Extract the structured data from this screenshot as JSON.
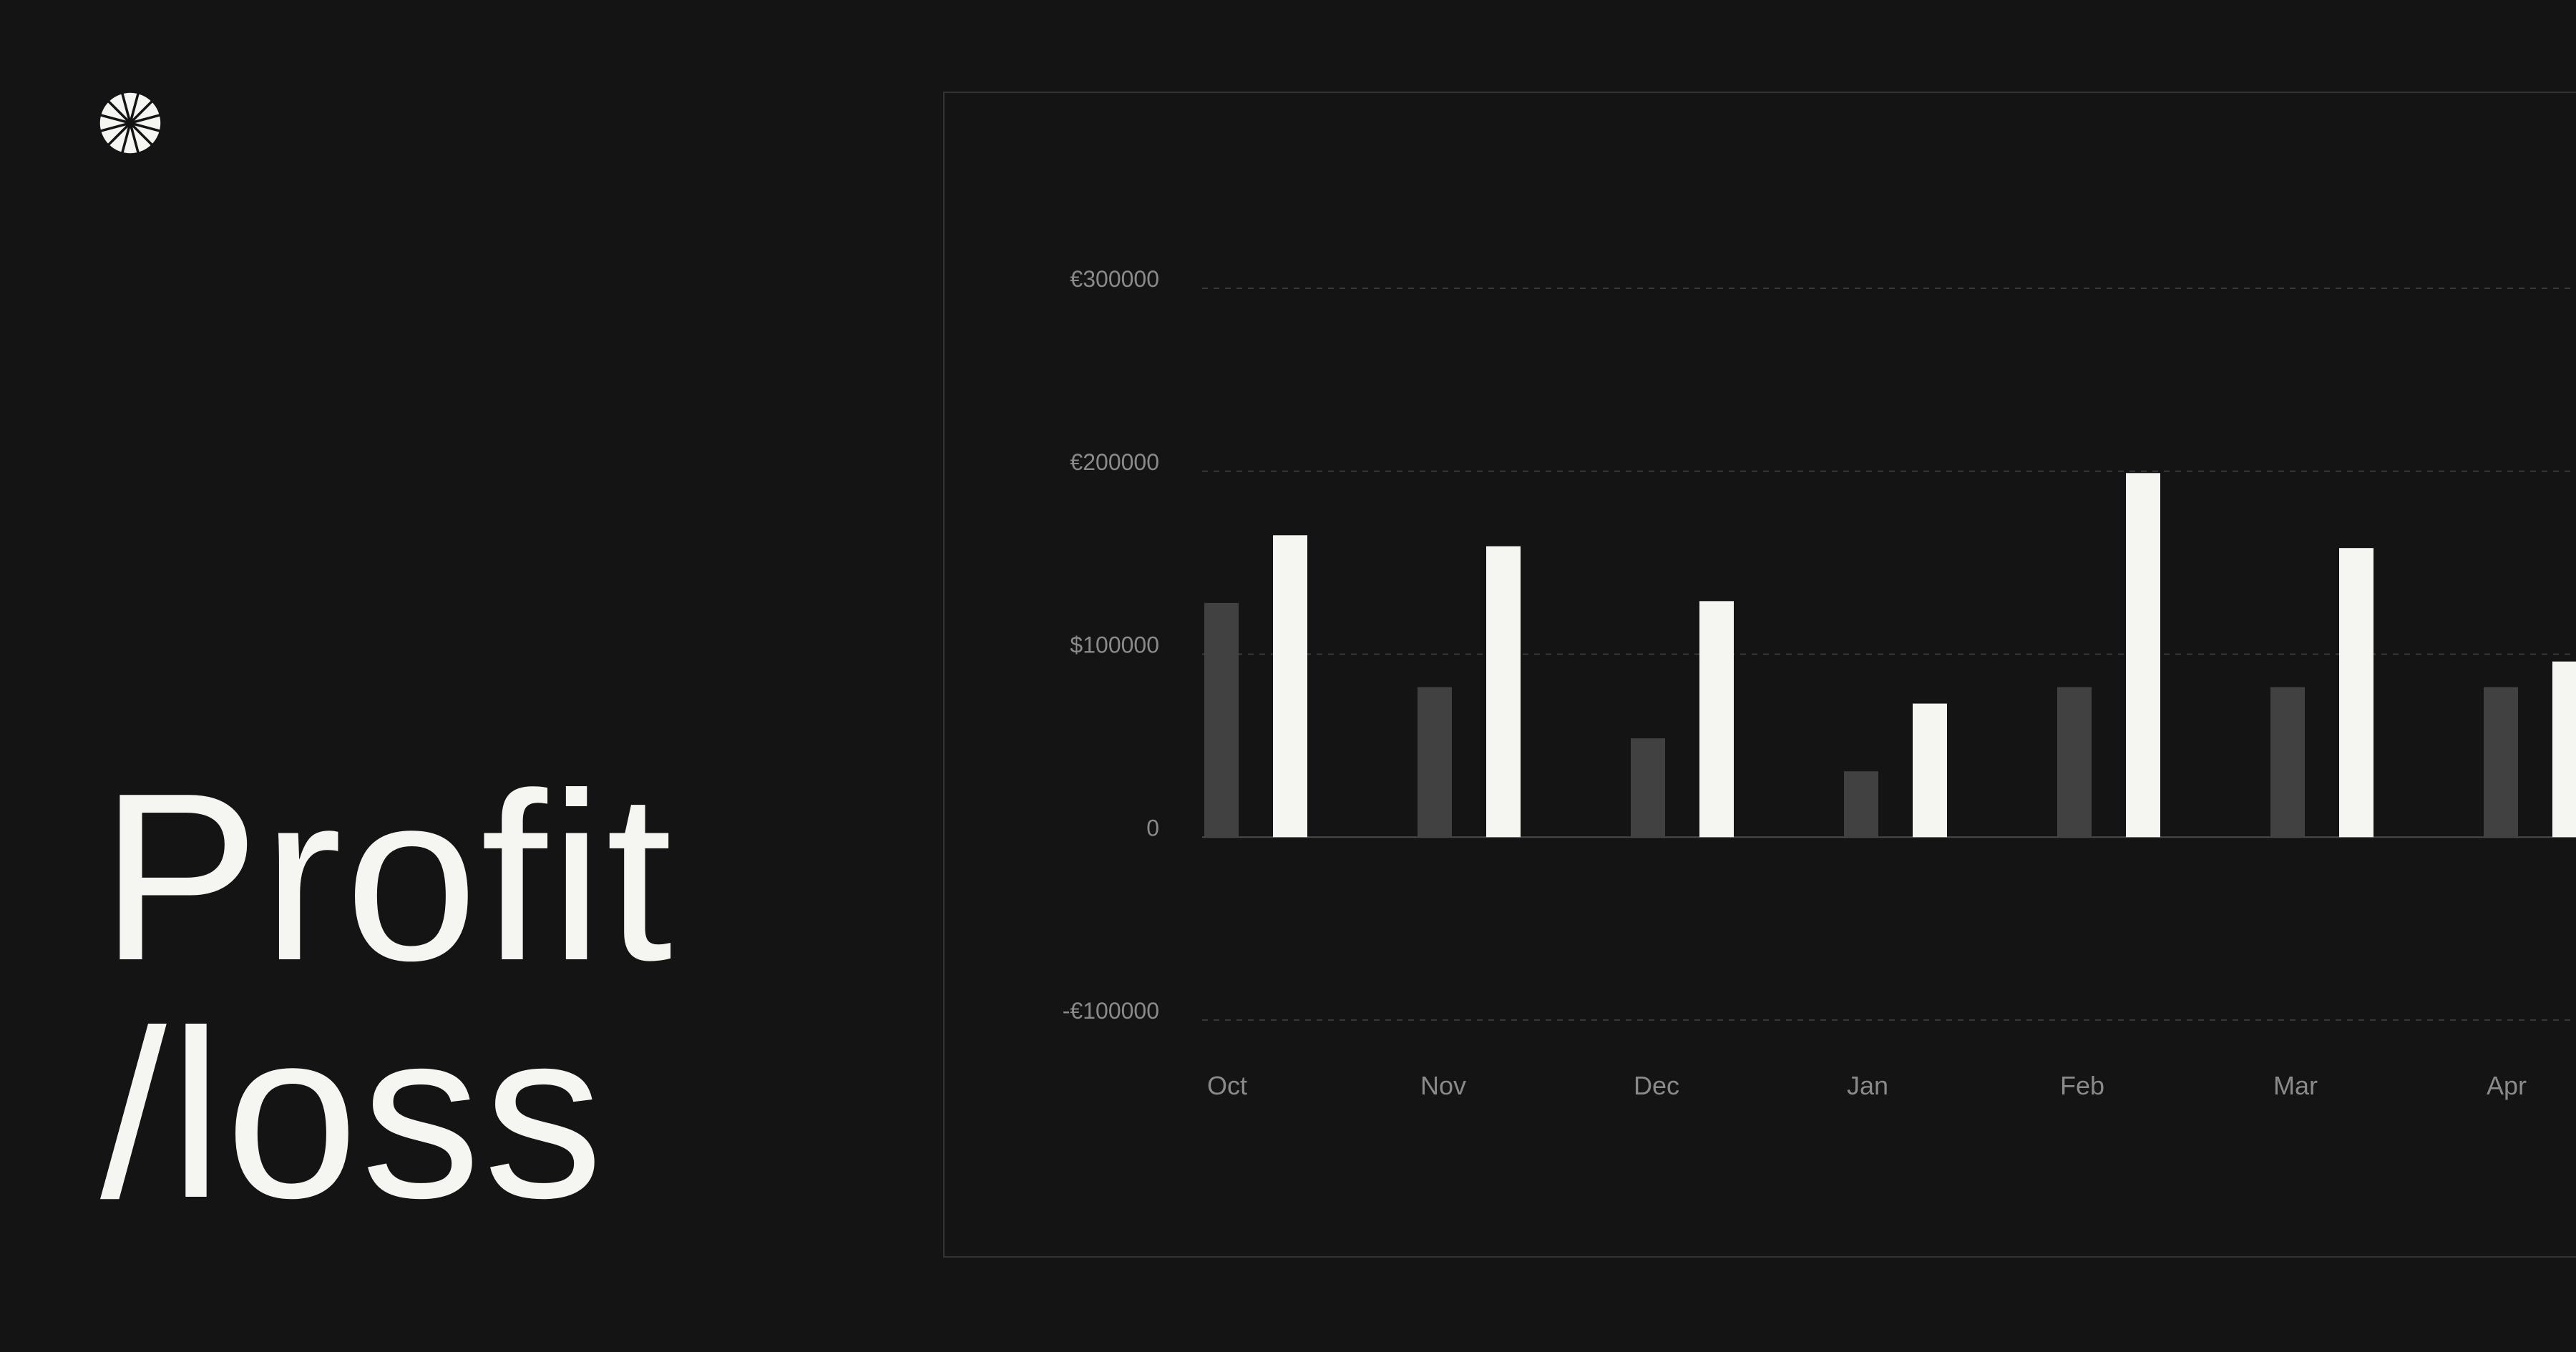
{
  "headline": {
    "line1": "Profit",
    "line2": "/loss"
  },
  "logo": {
    "icon": "starburst-icon",
    "color": "#f5f5f2"
  },
  "colors": {
    "background": "#141414",
    "panel_border": "#333333",
    "text": "#f5f5f2",
    "series_dark": "#414141",
    "series_light": "#f5f5f2",
    "tick_label": "#8a8a8a",
    "grid": "#3a3a3a"
  },
  "chart_data": {
    "type": "bar",
    "title": "",
    "xlabel": "",
    "ylabel": "",
    "categories": [
      "Oct",
      "Nov",
      "Dec",
      "Jan",
      "Feb",
      "Mar",
      "Apr"
    ],
    "series": [
      {
        "values": [
          128000,
          82000,
          54000,
          36000,
          82000,
          82000,
          82000
        ]
      },
      {
        "values": [
          165000,
          159000,
          129000,
          73000,
          199000,
          158000,
          96000
        ]
      }
    ],
    "ylim": [
      -100000,
      300000
    ],
    "yticks": [
      {
        "value": 300000,
        "label": "€300000"
      },
      {
        "value": 200000,
        "label": "€200000"
      },
      {
        "value": 100000,
        "label": "$100000"
      },
      {
        "value": 0,
        "label": "0"
      },
      {
        "value": -100000,
        "label": "-€100000"
      }
    ],
    "grid": "dashed horizontal",
    "legend": "none"
  }
}
